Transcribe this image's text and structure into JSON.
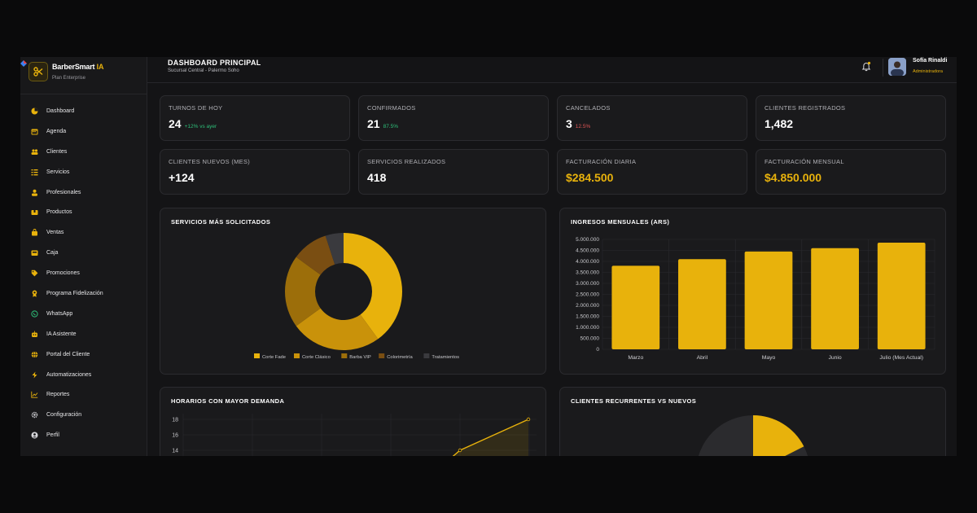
{
  "brand": {
    "name": "BarberSmart",
    "name_suffix": "IA",
    "plan": "Plan Enterprise"
  },
  "nav": [
    {
      "label": "Dashboard",
      "icon": "dashboard-icon"
    },
    {
      "label": "Agenda",
      "icon": "calendar-icon"
    },
    {
      "label": "Clientes",
      "icon": "users-icon"
    },
    {
      "label": "Servicios",
      "icon": "list-icon"
    },
    {
      "label": "Profesionales",
      "icon": "user-icon"
    },
    {
      "label": "Productos",
      "icon": "box-icon"
    },
    {
      "label": "Ventas",
      "icon": "bag-icon"
    },
    {
      "label": "Caja",
      "icon": "cashbox-icon"
    },
    {
      "label": "Promociones",
      "icon": "tag-icon"
    },
    {
      "label": "Programa Fidelización",
      "icon": "award-icon"
    },
    {
      "label": "WhatsApp",
      "icon": "whatsapp-icon"
    },
    {
      "label": "IA Asistente",
      "icon": "robot-icon"
    },
    {
      "label": "Portal del Cliente",
      "icon": "globe-icon"
    },
    {
      "label": "Automatizaciones",
      "icon": "bolt-icon"
    },
    {
      "label": "Reportes",
      "icon": "chart-icon"
    },
    {
      "label": "Configuración",
      "icon": "gear-icon"
    },
    {
      "label": "Perfil",
      "icon": "profile-icon"
    }
  ],
  "header": {
    "title": "DASHBOARD PRINCIPAL",
    "subtitle": "Sucursal Central - Palermo Soho"
  },
  "user": {
    "name": "Sofía Rinaldi",
    "role": "Administradora"
  },
  "stats": [
    {
      "label": "Turnos de hoy",
      "value": "24",
      "delta": "+12% vs ayer",
      "delta_color": "green"
    },
    {
      "label": "Confirmados",
      "value": "21",
      "delta": "87.5%",
      "delta_color": "green"
    },
    {
      "label": "Cancelados",
      "value": "3",
      "delta": "12.5%",
      "delta_color": "red"
    },
    {
      "label": "Clientes registrados",
      "value": "1,482",
      "delta": ""
    },
    {
      "label": "Clientes nuevos (mes)",
      "value": "+124",
      "delta": ""
    },
    {
      "label": "Servicios realizados",
      "value": "418",
      "delta": ""
    },
    {
      "label": "Facturación diaria",
      "value": "$284.500",
      "delta": "",
      "gold": true
    },
    {
      "label": "Facturación mensual",
      "value": "$4.850.000",
      "delta": "",
      "gold": true
    }
  ],
  "panels": {
    "servicios": "SERVICIOS MÁS SOLICITADOS",
    "ingresos": "INGRESOS MENSUALES (ARS)",
    "horarios": "HORARIOS CON MAYOR DEMANDA",
    "recurrentes": "CLIENTES RECURRENTES VS NUEVOS"
  },
  "chart_data": [
    {
      "type": "pie",
      "title": "SERVICIOS MÁS SOLICITADOS",
      "categories": [
        "Corte Fade",
        "Corte Clásico",
        "Barba VIP",
        "Colorimetría",
        "Tratamientos"
      ],
      "values": [
        40,
        25,
        20,
        10,
        5
      ],
      "colors": [
        "#e8b20c",
        "#c9920a",
        "#9c6e0a",
        "#7a4e12",
        "#3a3a3e"
      ],
      "legend": "bottom"
    },
    {
      "type": "bar",
      "title": "INGRESOS MENSUALES (ARS)",
      "categories": [
        "Marzo",
        "Abril",
        "Mayo",
        "Junio",
        "Julio (Mes Actual)"
      ],
      "values": [
        3800000,
        4100000,
        4450000,
        4600000,
        4850000
      ],
      "ylim": [
        0,
        5000000
      ],
      "yticks": [
        "0",
        "500.000",
        "1.000.000",
        "1.500.000",
        "2.000.000",
        "2.500.000",
        "3.000.000",
        "3.500.000",
        "4.000.000",
        "4.500.000",
        "5.000.000"
      ],
      "color": "#e8b20c",
      "grid": true
    },
    {
      "type": "line",
      "title": "HORARIOS CON MAYOR DEMANDA",
      "yticks": [
        "14",
        "16",
        "18"
      ],
      "visible_points": [
        12.2,
        14,
        18
      ],
      "color": "#e8b20c"
    },
    {
      "type": "pie",
      "title": "CLIENTES RECURRENTES VS NUEVOS",
      "colors": [
        "#e8b20c",
        "#2b2b2e"
      ]
    }
  ]
}
